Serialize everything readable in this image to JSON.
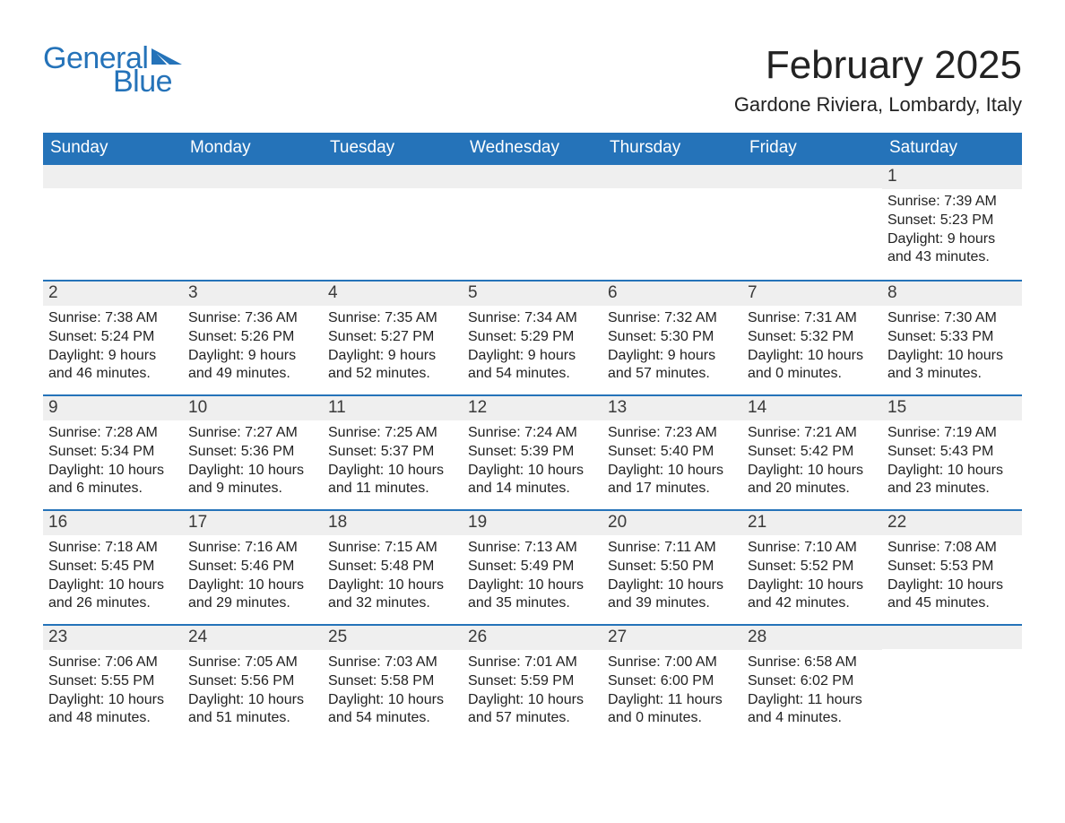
{
  "logo": {
    "text1": "General",
    "text2": "Blue"
  },
  "title": "February 2025",
  "location": "Gardone Riviera, Lombardy, Italy",
  "colors": {
    "brand": "#2573b9",
    "header_bg": "#2573b9",
    "header_text": "#ffffff",
    "daynum_bg": "#efefef",
    "text": "#222222",
    "page_bg": "#ffffff"
  },
  "days_of_week": [
    "Sunday",
    "Monday",
    "Tuesday",
    "Wednesday",
    "Thursday",
    "Friday",
    "Saturday"
  ],
  "weeks": [
    [
      null,
      null,
      null,
      null,
      null,
      null,
      {
        "n": "1",
        "sunrise": "Sunrise: 7:39 AM",
        "sunset": "Sunset: 5:23 PM",
        "day1": "Daylight: 9 hours",
        "day2": "and 43 minutes."
      }
    ],
    [
      {
        "n": "2",
        "sunrise": "Sunrise: 7:38 AM",
        "sunset": "Sunset: 5:24 PM",
        "day1": "Daylight: 9 hours",
        "day2": "and 46 minutes."
      },
      {
        "n": "3",
        "sunrise": "Sunrise: 7:36 AM",
        "sunset": "Sunset: 5:26 PM",
        "day1": "Daylight: 9 hours",
        "day2": "and 49 minutes."
      },
      {
        "n": "4",
        "sunrise": "Sunrise: 7:35 AM",
        "sunset": "Sunset: 5:27 PM",
        "day1": "Daylight: 9 hours",
        "day2": "and 52 minutes."
      },
      {
        "n": "5",
        "sunrise": "Sunrise: 7:34 AM",
        "sunset": "Sunset: 5:29 PM",
        "day1": "Daylight: 9 hours",
        "day2": "and 54 minutes."
      },
      {
        "n": "6",
        "sunrise": "Sunrise: 7:32 AM",
        "sunset": "Sunset: 5:30 PM",
        "day1": "Daylight: 9 hours",
        "day2": "and 57 minutes."
      },
      {
        "n": "7",
        "sunrise": "Sunrise: 7:31 AM",
        "sunset": "Sunset: 5:32 PM",
        "day1": "Daylight: 10 hours",
        "day2": "and 0 minutes."
      },
      {
        "n": "8",
        "sunrise": "Sunrise: 7:30 AM",
        "sunset": "Sunset: 5:33 PM",
        "day1": "Daylight: 10 hours",
        "day2": "and 3 minutes."
      }
    ],
    [
      {
        "n": "9",
        "sunrise": "Sunrise: 7:28 AM",
        "sunset": "Sunset: 5:34 PM",
        "day1": "Daylight: 10 hours",
        "day2": "and 6 minutes."
      },
      {
        "n": "10",
        "sunrise": "Sunrise: 7:27 AM",
        "sunset": "Sunset: 5:36 PM",
        "day1": "Daylight: 10 hours",
        "day2": "and 9 minutes."
      },
      {
        "n": "11",
        "sunrise": "Sunrise: 7:25 AM",
        "sunset": "Sunset: 5:37 PM",
        "day1": "Daylight: 10 hours",
        "day2": "and 11 minutes."
      },
      {
        "n": "12",
        "sunrise": "Sunrise: 7:24 AM",
        "sunset": "Sunset: 5:39 PM",
        "day1": "Daylight: 10 hours",
        "day2": "and 14 minutes."
      },
      {
        "n": "13",
        "sunrise": "Sunrise: 7:23 AM",
        "sunset": "Sunset: 5:40 PM",
        "day1": "Daylight: 10 hours",
        "day2": "and 17 minutes."
      },
      {
        "n": "14",
        "sunrise": "Sunrise: 7:21 AM",
        "sunset": "Sunset: 5:42 PM",
        "day1": "Daylight: 10 hours",
        "day2": "and 20 minutes."
      },
      {
        "n": "15",
        "sunrise": "Sunrise: 7:19 AM",
        "sunset": "Sunset: 5:43 PM",
        "day1": "Daylight: 10 hours",
        "day2": "and 23 minutes."
      }
    ],
    [
      {
        "n": "16",
        "sunrise": "Sunrise: 7:18 AM",
        "sunset": "Sunset: 5:45 PM",
        "day1": "Daylight: 10 hours",
        "day2": "and 26 minutes."
      },
      {
        "n": "17",
        "sunrise": "Sunrise: 7:16 AM",
        "sunset": "Sunset: 5:46 PM",
        "day1": "Daylight: 10 hours",
        "day2": "and 29 minutes."
      },
      {
        "n": "18",
        "sunrise": "Sunrise: 7:15 AM",
        "sunset": "Sunset: 5:48 PM",
        "day1": "Daylight: 10 hours",
        "day2": "and 32 minutes."
      },
      {
        "n": "19",
        "sunrise": "Sunrise: 7:13 AM",
        "sunset": "Sunset: 5:49 PM",
        "day1": "Daylight: 10 hours",
        "day2": "and 35 minutes."
      },
      {
        "n": "20",
        "sunrise": "Sunrise: 7:11 AM",
        "sunset": "Sunset: 5:50 PM",
        "day1": "Daylight: 10 hours",
        "day2": "and 39 minutes."
      },
      {
        "n": "21",
        "sunrise": "Sunrise: 7:10 AM",
        "sunset": "Sunset: 5:52 PM",
        "day1": "Daylight: 10 hours",
        "day2": "and 42 minutes."
      },
      {
        "n": "22",
        "sunrise": "Sunrise: 7:08 AM",
        "sunset": "Sunset: 5:53 PM",
        "day1": "Daylight: 10 hours",
        "day2": "and 45 minutes."
      }
    ],
    [
      {
        "n": "23",
        "sunrise": "Sunrise: 7:06 AM",
        "sunset": "Sunset: 5:55 PM",
        "day1": "Daylight: 10 hours",
        "day2": "and 48 minutes."
      },
      {
        "n": "24",
        "sunrise": "Sunrise: 7:05 AM",
        "sunset": "Sunset: 5:56 PM",
        "day1": "Daylight: 10 hours",
        "day2": "and 51 minutes."
      },
      {
        "n": "25",
        "sunrise": "Sunrise: 7:03 AM",
        "sunset": "Sunset: 5:58 PM",
        "day1": "Daylight: 10 hours",
        "day2": "and 54 minutes."
      },
      {
        "n": "26",
        "sunrise": "Sunrise: 7:01 AM",
        "sunset": "Sunset: 5:59 PM",
        "day1": "Daylight: 10 hours",
        "day2": "and 57 minutes."
      },
      {
        "n": "27",
        "sunrise": "Sunrise: 7:00 AM",
        "sunset": "Sunset: 6:00 PM",
        "day1": "Daylight: 11 hours",
        "day2": "and 0 minutes."
      },
      {
        "n": "28",
        "sunrise": "Sunrise: 6:58 AM",
        "sunset": "Sunset: 6:02 PM",
        "day1": "Daylight: 11 hours",
        "day2": "and 4 minutes."
      },
      null
    ]
  ]
}
